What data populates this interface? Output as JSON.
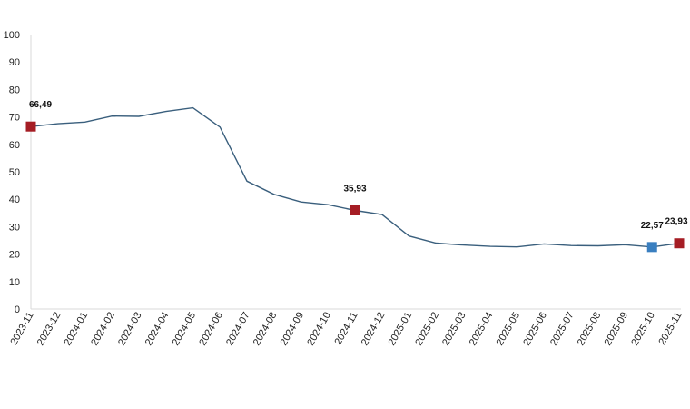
{
  "chart_data": {
    "type": "line",
    "title": "",
    "xlabel": "",
    "ylabel": "",
    "ylim": [
      0,
      100
    ],
    "yticks": [
      0,
      10,
      20,
      30,
      40,
      50,
      60,
      70,
      80,
      90,
      100
    ],
    "grid": false,
    "legend": "none",
    "line_color": "#3a5f7d",
    "categories": [
      "2023-11",
      "2023-12",
      "2024-01",
      "2024-02",
      "2024-03",
      "2024-04",
      "2024-05",
      "2024-06",
      "2024-07",
      "2024-08",
      "2024-09",
      "2024-10",
      "2024-11",
      "2024-12",
      "2025-01",
      "2025-02",
      "2025-03",
      "2025-04",
      "2025-05",
      "2025-06",
      "2025-07",
      "2025-08",
      "2025-09",
      "2025-10",
      "2025-11"
    ],
    "series": [
      {
        "values": [
          66.49,
          67.5,
          68.1,
          70.3,
          70.2,
          72.0,
          73.3,
          66.3,
          46.6,
          41.8,
          39.0,
          38.0,
          35.93,
          34.4,
          26.6,
          24.0,
          23.3,
          22.8,
          22.6,
          23.7,
          23.1,
          23.0,
          23.4,
          22.57,
          23.93
        ]
      }
    ],
    "annotations": [
      {
        "index": 0,
        "label": "66,49",
        "color": "#a51d24"
      },
      {
        "index": 12,
        "label": "35,93",
        "color": "#a51d24"
      },
      {
        "index": 23,
        "label": "22,57",
        "color": "#3a7fc0"
      },
      {
        "index": 24,
        "label": "23,93",
        "color": "#a51d24"
      }
    ]
  }
}
